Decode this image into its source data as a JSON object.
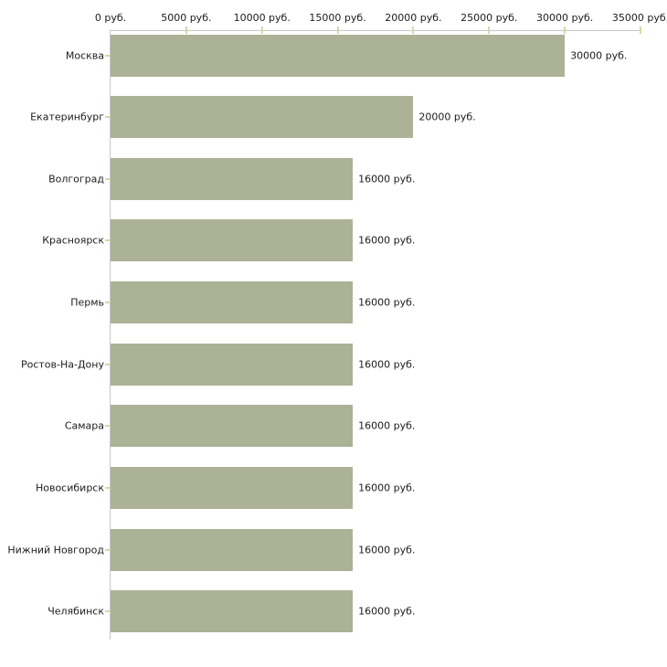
{
  "chart_data": {
    "type": "bar",
    "orientation": "horizontal",
    "title": "",
    "xlabel": "",
    "ylabel": "",
    "xlim": [
      0,
      35000
    ],
    "grid": false,
    "legend": false,
    "categories": [
      "Москва",
      "Екатеринбург",
      "Волгоград",
      "Красноярск",
      "Пермь",
      "Ростов-На-Дону",
      "Самара",
      "Новосибирск",
      "Нижний Новгород",
      "Челябинск"
    ],
    "values": [
      30000,
      20000,
      16000,
      16000,
      16000,
      16000,
      16000,
      16000,
      16000,
      16000
    ],
    "value_labels": [
      "30000 руб.",
      "20000 руб.",
      "16000 руб.",
      "16000 руб.",
      "16000 руб.",
      "16000 руб.",
      "16000 руб.",
      "16000 руб.",
      "16000 руб.",
      "16000 руб."
    ],
    "x_ticks": [
      0,
      5000,
      10000,
      15000,
      20000,
      25000,
      30000,
      35000
    ],
    "x_tick_labels": [
      "0 руб.",
      "5000 руб.",
      "10000 руб.",
      "15000 руб.",
      "20000 руб.",
      "25000 руб.",
      "30000 руб.",
      "35000 руб."
    ],
    "colors": {
      "bar_fill": "#abb296",
      "axis_line": "#c7c7c7",
      "tick_mark": "#d5d6ac",
      "text": "#1c1c1c",
      "background": "#ffffff"
    }
  }
}
